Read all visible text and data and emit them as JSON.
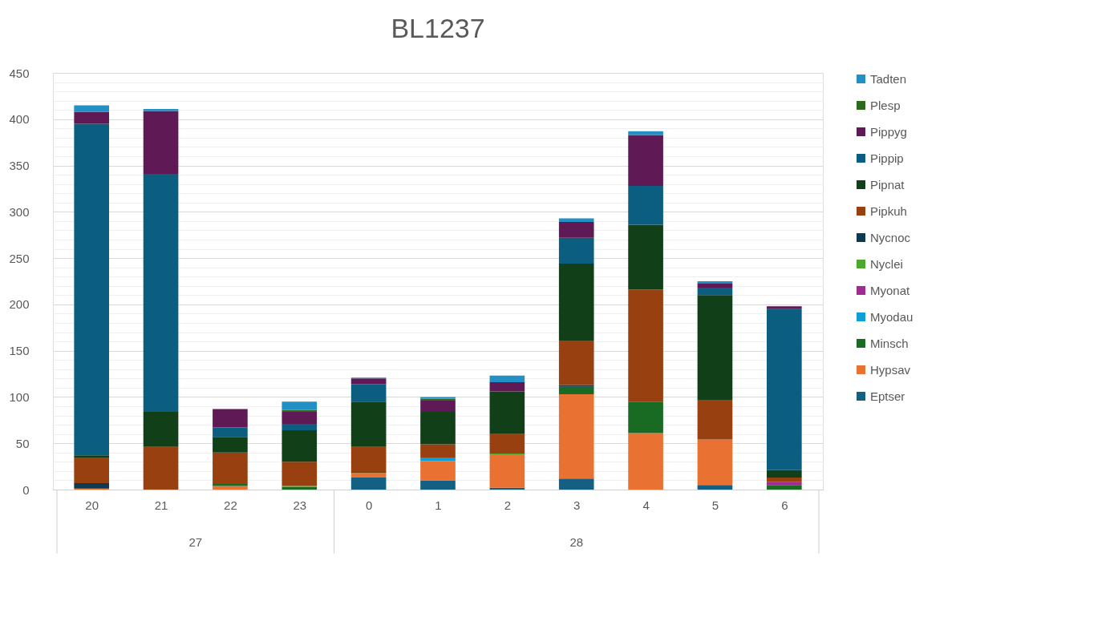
{
  "chart_data": {
    "type": "bar",
    "title": "BL1237",
    "stacked": true,
    "grid": "y",
    "legend": "right",
    "categories": [
      "20",
      "21",
      "22",
      "23",
      "0",
      "1",
      "2",
      "3",
      "4",
      "5",
      "6"
    ],
    "annotations": [
      "27",
      "28"
    ],
    "ylim": [
      0,
      450
    ],
    "yticks": [
      0,
      {
        "value": 10,
        "label": null
      },
      {
        "value": 20,
        "label": null
      },
      {
        "value": 30,
        "label": null
      },
      {
        "value": 40,
        "label": null
      },
      50,
      {
        "value": 60,
        "label": null
      },
      {
        "value": 70,
        "label": null
      },
      {
        "value": 80,
        "label": null
      },
      {
        "value": 90,
        "label": null
      },
      100,
      {
        "value": 110,
        "label": null
      },
      {
        "value": 120,
        "label": null
      },
      {
        "value": 130,
        "label": null
      },
      {
        "value": 140,
        "label": null
      },
      150,
      {
        "value": 160,
        "label": null
      },
      {
        "value": 170,
        "label": null
      },
      {
        "value": 180,
        "label": null
      },
      {
        "value": 190,
        "label": null
      },
      200,
      {
        "value": 210,
        "label": null
      },
      {
        "value": 220,
        "label": null
      },
      {
        "value": 230,
        "label": null
      },
      {
        "value": 240,
        "label": null
      },
      250,
      {
        "value": 260,
        "label": null
      },
      {
        "value": 270,
        "label": null
      },
      {
        "value": 280,
        "label": null
      },
      {
        "value": 290,
        "label": null
      },
      300,
      {
        "value": 310,
        "label": null
      },
      {
        "value": 320,
        "label": null
      },
      {
        "value": 330,
        "label": null
      },
      {
        "value": 340,
        "label": null
      },
      350,
      {
        "value": 360,
        "label": null
      },
      {
        "value": 370,
        "label": null
      },
      {
        "value": 380,
        "label": null
      },
      {
        "value": 390,
        "label": null
      },
      400,
      {
        "value": 410,
        "label": null
      },
      {
        "value": 420,
        "label": null
      },
      {
        "value": 430,
        "label": null
      },
      {
        "value": 440,
        "label": null
      },
      450
    ],
    "series": [
      {
        "name": "Eptser",
        "color": "#156082",
        "values": [
          0,
          0,
          0,
          0,
          13,
          10,
          2,
          12,
          0,
          5,
          0
        ]
      },
      {
        "name": "Hypsav",
        "color": "#e97132",
        "values": [
          1,
          0,
          4,
          0,
          5,
          21,
          36,
          91,
          61,
          49,
          0
        ]
      },
      {
        "name": "Minsch",
        "color": "#196b24",
        "values": [
          0,
          0,
          2,
          3,
          1,
          0,
          0,
          8,
          34,
          0,
          5
        ]
      },
      {
        "name": "Myodau",
        "color": "#0f9ed5",
        "values": [
          0,
          0,
          0,
          0,
          0,
          3,
          0,
          0,
          0,
          0,
          0
        ]
      },
      {
        "name": "Myonat",
        "color": "#a02b93",
        "values": [
          0,
          0,
          0,
          0,
          0,
          0,
          0,
          0,
          0,
          0,
          3
        ]
      },
      {
        "name": "Nyclei",
        "color": "#4ea72e",
        "values": [
          0,
          0,
          0,
          1,
          0,
          0,
          1,
          0,
          0,
          0,
          0
        ]
      },
      {
        "name": "Nycnoc",
        "color": "#0e3a50",
        "values": [
          6,
          0,
          0,
          0,
          0,
          0,
          0,
          2,
          0,
          0,
          0
        ]
      },
      {
        "name": "Pipkuh",
        "color": "#984010",
        "values": [
          27,
          46,
          34,
          26,
          27,
          15,
          21,
          48,
          121,
          43,
          5
        ]
      },
      {
        "name": "Pipnat",
        "color": "#113f17",
        "values": [
          3,
          38,
          17,
          34,
          49,
          35,
          46,
          83,
          70,
          113,
          8
        ]
      },
      {
        "name": "Pippip",
        "color": "#0b5e80",
        "values": [
          358,
          257,
          10,
          7,
          19,
          0,
          0,
          28,
          42,
          8,
          174
        ]
      },
      {
        "name": "Pippyg",
        "color": "#5f1a55",
        "values": [
          13,
          68,
          20,
          13,
          6,
          12,
          10,
          17,
          55,
          5,
          3
        ]
      },
      {
        "name": "Plesp",
        "color": "#2e6a1c",
        "values": [
          0,
          0,
          0,
          2,
          0,
          2,
          0,
          0,
          0,
          0,
          0
        ]
      },
      {
        "name": "Tadten",
        "color": "#2290c5",
        "values": [
          7,
          2,
          0,
          9,
          1,
          2,
          7,
          4,
          4,
          2,
          0
        ]
      }
    ]
  }
}
